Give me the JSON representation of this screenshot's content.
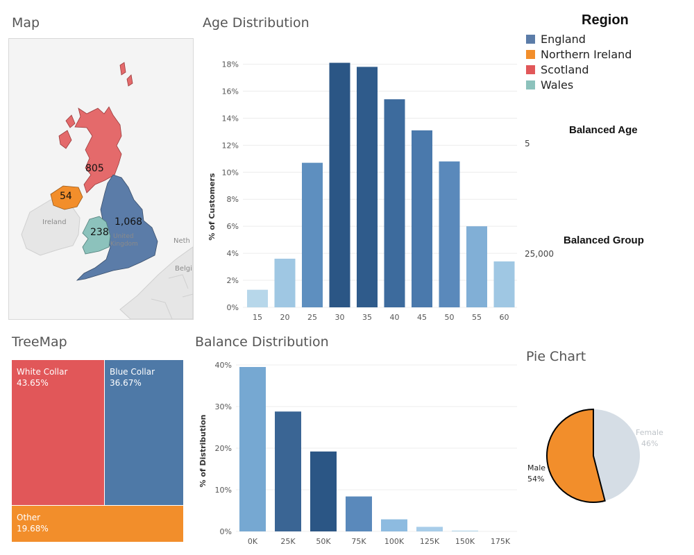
{
  "map": {
    "title": "Map",
    "region_values": {
      "scotland": "805",
      "northern_ireland": "54",
      "wales": "238",
      "england": "1,068"
    },
    "place_labels": {
      "ireland": "Ireland",
      "uk_line1": "United",
      "uk_line2": "Kingdom",
      "netherlands": "Neth",
      "belgium": "Belgi"
    }
  },
  "legend": {
    "title": "Region",
    "items": [
      {
        "label": "England",
        "color": "#5b7ca8"
      },
      {
        "label": "Northern Ireland",
        "color": "#f28e2b"
      },
      {
        "label": "Scotland",
        "color": "#e15759"
      },
      {
        "label": "Wales",
        "color": "#8cc2bc"
      }
    ]
  },
  "parameters": {
    "balanced_age": {
      "label": "Balanced Age",
      "value": "5"
    },
    "balanced_group": {
      "label": "Balanced Group",
      "value": "25,000"
    }
  },
  "age_chart": {
    "title": "Age Distribution",
    "ylabel": "% of Customers",
    "yticks": [
      "0%",
      "2%",
      "4%",
      "6%",
      "8%",
      "10%",
      "12%",
      "14%",
      "16%",
      "18%"
    ]
  },
  "balance_chart": {
    "title": "Balance Distribution",
    "ylabel": "% of Distribution",
    "yticks": [
      "0%",
      "10%",
      "20%",
      "30%",
      "40%"
    ]
  },
  "treemap": {
    "title": "TreeMap",
    "cells": [
      {
        "label": "White Collar",
        "value": "43.65%",
        "color": "#e15759"
      },
      {
        "label": "Blue Collar",
        "value": "36.67%",
        "color": "#4e79a7"
      },
      {
        "label": "Other",
        "value": "19.68%",
        "color": "#f28e2b"
      }
    ]
  },
  "pie": {
    "title": "Pie Chart",
    "male_label": "Male",
    "male_value": "54%",
    "female_label": "Female",
    "female_value": "46%"
  },
  "chart_data": [
    {
      "type": "bar",
      "title": "Age Distribution",
      "xlabel": "",
      "ylabel": "% of Customers",
      "categories": [
        "15",
        "20",
        "25",
        "30",
        "35",
        "40",
        "45",
        "50",
        "55",
        "60"
      ],
      "values": [
        1.3,
        3.6,
        10.7,
        18.1,
        17.8,
        15.4,
        13.1,
        10.8,
        6.0,
        3.4
      ],
      "colors": [
        "#b7d7ea",
        "#9fc7e3",
        "#5e8fbf",
        "#2b5685",
        "#2f5b8b",
        "#3d6b9d",
        "#4a79ac",
        "#5a89bb",
        "#81afd6",
        "#9fc7e3"
      ],
      "ylim": [
        0,
        19
      ],
      "grid": true
    },
    {
      "type": "bar",
      "title": "Balance Distribution",
      "xlabel": "",
      "ylabel": "% of Distribution",
      "categories": [
        "0K",
        "25K",
        "50K",
        "75K",
        "100K",
        "125K",
        "150K",
        "175K"
      ],
      "values": [
        39.5,
        28.8,
        19.2,
        8.4,
        2.9,
        1.1,
        0.2,
        0.0
      ],
      "colors": [
        "#76a8d2",
        "#3a6594",
        "#2b5685",
        "#5a89bb",
        "#8dbbe0",
        "#a8cde9",
        "#b7d7ea",
        "#c8e0ef"
      ],
      "ylim": [
        0,
        41
      ],
      "grid": true
    },
    {
      "type": "pie",
      "title": "Pie Chart",
      "categories": [
        "Male",
        "Female"
      ],
      "values": [
        54,
        46
      ],
      "colors": [
        "#f28e2b",
        "#d5dde5"
      ]
    }
  ]
}
